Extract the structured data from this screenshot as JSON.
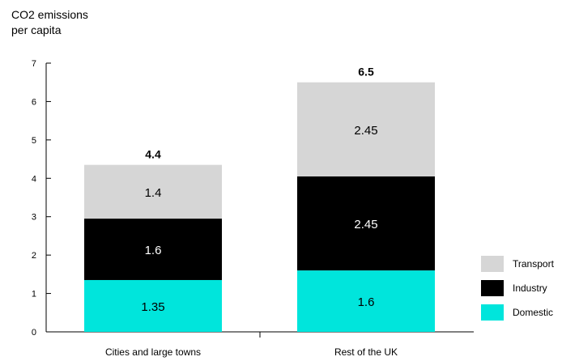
{
  "chart_data": {
    "type": "bar",
    "stacked": true,
    "ylabel": [
      "CO2 emissions",
      "per capita"
    ],
    "ylim": [
      0,
      7
    ],
    "yticks": [
      0,
      1,
      2,
      3,
      4,
      5,
      6,
      7
    ],
    "grid": false,
    "legend_position": "bottom-right",
    "categories": [
      "Cities and large towns",
      "Rest of the UK"
    ],
    "totals": [
      "4.4",
      "6.5"
    ],
    "series": [
      {
        "name": "Domestic",
        "values": [
          1.35,
          1.6
        ],
        "labels": [
          "1.35",
          "1.6"
        ],
        "color": "#00e5dc",
        "label_color": "#000000"
      },
      {
        "name": "Industry",
        "values": [
          1.6,
          2.45
        ],
        "labels": [
          "1.6",
          "2.45"
        ],
        "color": "#000000",
        "label_color": "#ffffff"
      },
      {
        "name": "Transport",
        "values": [
          1.4,
          2.45
        ],
        "labels": [
          "1.4",
          "2.45"
        ],
        "color": "#d6d6d6",
        "label_color": "#000000"
      }
    ]
  }
}
